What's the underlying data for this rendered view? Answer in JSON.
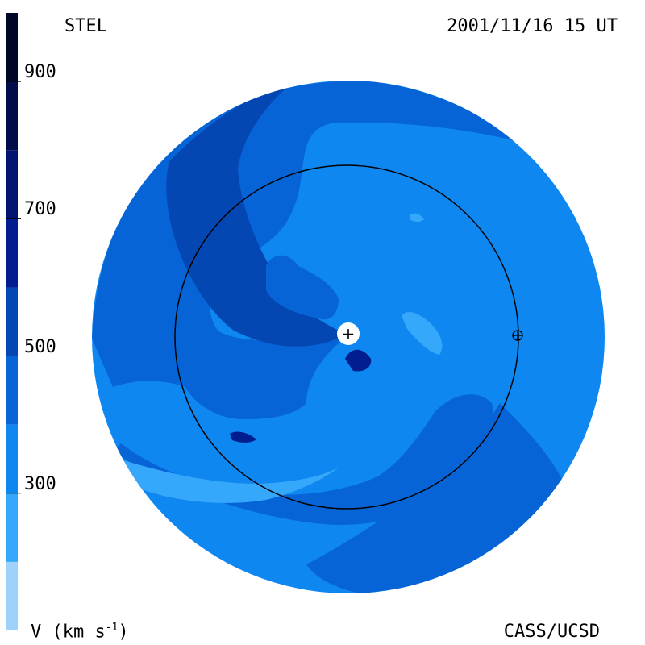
{
  "header": {
    "model": "STEL",
    "timestamp": "2001/11/16 15 UT"
  },
  "footer": {
    "unit_label": "V (km s",
    "unit_exponent": "-1",
    "unit_close": ")",
    "credit": "CASS/UCSD"
  },
  "colorbar": {
    "tick_labels": [
      "900",
      "700",
      "500",
      "300"
    ],
    "tick_values": [
      900,
      700,
      500,
      300
    ],
    "range": [
      100,
      1000
    ],
    "levels": [
      {
        "from": 100,
        "to": 200,
        "color": "#9fd2fa"
      },
      {
        "from": 200,
        "to": 300,
        "color": "#36a8fb"
      },
      {
        "from": 300,
        "to": 400,
        "color": "#0e87f0"
      },
      {
        "from": 400,
        "to": 500,
        "color": "#0764d6"
      },
      {
        "from": 500,
        "to": 600,
        "color": "#0447b3"
      },
      {
        "from": 600,
        "to": 700,
        "color": "#021d8f"
      },
      {
        "from": 700,
        "to": 800,
        "color": "#011470"
      },
      {
        "from": 800,
        "to": 900,
        "color": "#010c4a"
      },
      {
        "from": 900,
        "to": 1000,
        "color": "#000626"
      }
    ]
  },
  "markers": {
    "sun_symbol": "+",
    "earth_symbol": "⊕"
  }
}
